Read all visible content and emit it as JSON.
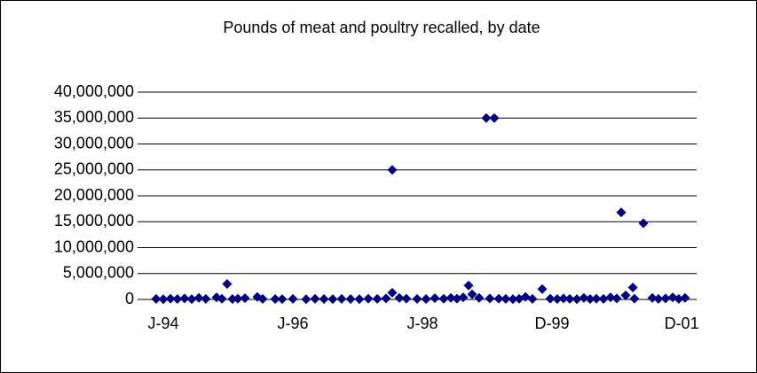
{
  "chart_data": {
    "type": "scatter",
    "title": "Pounds of meat and poultry recalled, by date",
    "color": "#000080",
    "grid": true,
    "xlim": [
      34206,
      37334
    ],
    "xticks": [
      {
        "value": 34350,
        "label": "J-94"
      },
      {
        "value": 35075,
        "label": "J-96"
      },
      {
        "value": 35800,
        "label": "J-98"
      },
      {
        "value": 36525,
        "label": "D-99"
      },
      {
        "value": 37250,
        "label": "D-01"
      }
    ],
    "ylim": [
      0,
      40000000
    ],
    "yticks": [
      0,
      {
        "value": 5000000,
        "label": "5,000,000"
      },
      {
        "value": 10000000,
        "label": "10,000,000"
      },
      {
        "value": 15000000,
        "label": "15,000,000"
      },
      {
        "value": 20000000,
        "label": "20,000,000"
      },
      {
        "value": 25000000,
        "label": "25,000,000"
      },
      {
        "value": 30000000,
        "label": "30,000,000"
      },
      {
        "value": 35000000,
        "label": "35,000,000"
      },
      {
        "value": 40000000,
        "label": "40,000,000"
      }
    ],
    "x": [
      34310,
      34350,
      34390,
      34429,
      34469,
      34509,
      34549,
      34588,
      34648,
      34678,
      34707,
      34737,
      34767,
      34807,
      34876,
      34906,
      34976,
      35015,
      35075,
      35149,
      35199,
      35249,
      35298,
      35348,
      35398,
      35447,
      35497,
      35547,
      35596,
      35631,
      35631,
      35671,
      35710,
      35770,
      35820,
      35869,
      35919,
      35959,
      35993,
      36028,
      36058,
      36078,
      36117,
      36157,
      36177,
      36202,
      36227,
      36266,
      36306,
      36341,
      36376,
      36415,
      36470,
      36515,
      36554,
      36589,
      36624,
      36664,
      36703,
      36738,
      36773,
      36813,
      36852,
      36887,
      36912,
      36937,
      36977,
      36986,
      37036,
      37086,
      37120,
      37160,
      37200,
      37234,
      37269
    ],
    "y": [
      100000,
      50000,
      150000,
      80000,
      200000,
      60000,
      300000,
      100000,
      400000,
      120000,
      3000000,
      90000,
      150000,
      250000,
      500000,
      100000,
      80000,
      60000,
      100000,
      50000,
      120000,
      90000,
      70000,
      100000,
      80000,
      60000,
      150000,
      100000,
      200000,
      25000000,
      1300000,
      300000,
      150000,
      100000,
      80000,
      250000,
      120000,
      300000,
      150000,
      400000,
      2700000,
      1000000,
      300000,
      35000000,
      200000,
      35000000,
      150000,
      100000,
      60000,
      120000,
      500000,
      100000,
      2000000,
      150000,
      80000,
      200000,
      100000,
      60000,
      300000,
      90000,
      150000,
      100000,
      400000,
      200000,
      16800000,
      800000,
      2300000,
      150000,
      14700000,
      300000,
      100000,
      200000,
      400000,
      100000,
      300000
    ]
  }
}
